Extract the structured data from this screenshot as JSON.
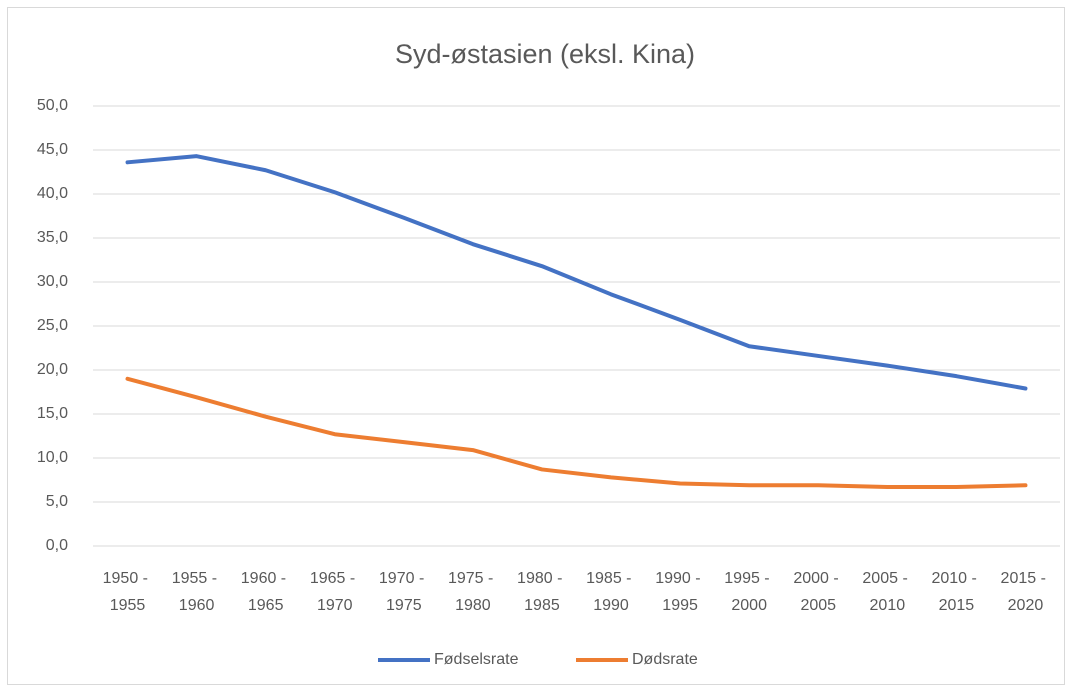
{
  "chart_data": {
    "type": "line",
    "title": "Syd-østasien (eksl. Kina)",
    "categories": [
      "1950 - 1955",
      "1955 - 1960",
      "1960 - 1965",
      "1965 - 1970",
      "1970 - 1975",
      "1975 - 1980",
      "1980 - 1985",
      "1985 - 1990",
      "1990 - 1995",
      "1995 - 2000",
      "2000 - 2005",
      "2005 - 2010",
      "2010 - 2015",
      "2015 - 2020"
    ],
    "series": [
      {
        "name": "Fødselsrate",
        "color": "#4472c4",
        "values": [
          43.6,
          44.3,
          42.7,
          40.2,
          37.3,
          34.3,
          31.8,
          28.6,
          25.7,
          22.7,
          21.6,
          20.5,
          19.3,
          17.9
        ]
      },
      {
        "name": "Dødsrate",
        "color": "#ed7d31",
        "values": [
          19.0,
          16.9,
          14.7,
          12.7,
          11.8,
          10.9,
          8.7,
          7.8,
          7.1,
          6.9,
          6.9,
          6.7,
          6.7,
          6.9
        ]
      }
    ],
    "ylim": [
      0,
      50
    ],
    "yticks": [
      {
        "value": 0,
        "label": "0,0"
      },
      {
        "value": 5,
        "label": "5,0"
      },
      {
        "value": 10,
        "label": "10,0"
      },
      {
        "value": 15,
        "label": "15,0"
      },
      {
        "value": 20,
        "label": "20,0"
      },
      {
        "value": 25,
        "label": "25,0"
      },
      {
        "value": 30,
        "label": "30,0"
      },
      {
        "value": 35,
        "label": "35,0"
      },
      {
        "value": 40,
        "label": "40,0"
      },
      {
        "value": 45,
        "label": "45,0"
      },
      {
        "value": 50,
        "label": "50,0"
      }
    ],
    "grid": true,
    "legend": "bottom"
  }
}
